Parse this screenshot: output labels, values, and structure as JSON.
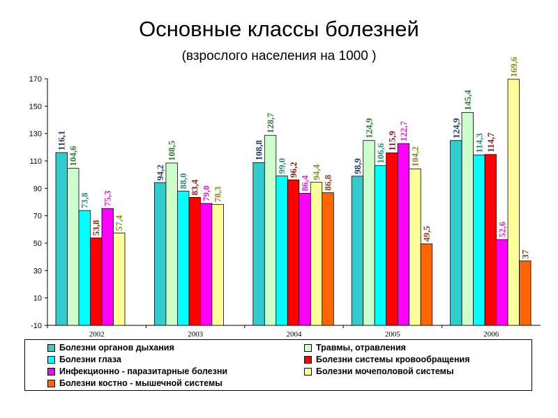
{
  "title": "Основные классы болезней",
  "subtitle": "(взрослого населения на 1000 )",
  "chart_data": {
    "type": "bar",
    "categories": [
      "2002",
      "2003",
      "2004",
      "2005",
      "2006"
    ],
    "ylim": [
      -10,
      170
    ],
    "yticks": [
      -10,
      10,
      30,
      50,
      70,
      90,
      110,
      130,
      150,
      170
    ],
    "grid": false,
    "legend_position": "bottom",
    "series": [
      {
        "name": "Болезни органов дыхания",
        "color": "#33CCCC",
        "label_color": "#1F3864",
        "values": [
          116.1,
          94.2,
          108.8,
          98.9,
          124.9
        ],
        "labels": [
          "116,1",
          "94,2",
          "108,8",
          "98,9",
          "124,9"
        ]
      },
      {
        "name": "Травмы, отравления",
        "color": "#CCFFCC",
        "label_color": "#2E7D32",
        "values": [
          104.6,
          108.5,
          128.7,
          124.9,
          145.4
        ],
        "labels": [
          "104,6",
          "108,5",
          "128,7",
          "124,9",
          "145,4"
        ]
      },
      {
        "name": "Болезни глаза",
        "color": "#00FFFF",
        "label_color": "#2E8B7A",
        "values": [
          73.8,
          88.0,
          99.0,
          106.6,
          114.3
        ],
        "labels": [
          "73,8",
          "88,0",
          "99,0",
          "106,6",
          "114,3"
        ]
      },
      {
        "name": "Болезни системы кровообращения",
        "color": "#FF0000",
        "label_color": "#8B1A1A",
        "values": [
          53.8,
          83.4,
          96.2,
          115.9,
          114.7
        ],
        "labels": [
          "53,8",
          "83,4",
          "96,2",
          "115,9",
          "114,7"
        ]
      },
      {
        "name": "Инфекционно - паразитарные болезни",
        "color": "#FF00FF",
        "label_color": "#E020E0",
        "values": [
          75.3,
          79.0,
          86.4,
          122.7,
          52.6
        ],
        "labels": [
          "75,3",
          "79,0",
          "86,4",
          "122,7",
          "52,6"
        ]
      },
      {
        "name": "Болезни мочеполовой системы",
        "color": "#FFFF99",
        "label_color": "#8B8B1A",
        "values": [
          57.4,
          78.3,
          94.4,
          104.2,
          169.6
        ],
        "labels": [
          "57,4",
          "78,3",
          "94,4",
          "104,2",
          "169,6"
        ]
      },
      {
        "name": "Болезни костно - мышечной системы",
        "color": "#FF6600",
        "label_color": "#8B3A1A",
        "values": [
          null,
          null,
          86.8,
          49.5,
          37
        ],
        "labels": [
          null,
          null,
          "86,8",
          "49,5",
          "37"
        ]
      }
    ]
  }
}
